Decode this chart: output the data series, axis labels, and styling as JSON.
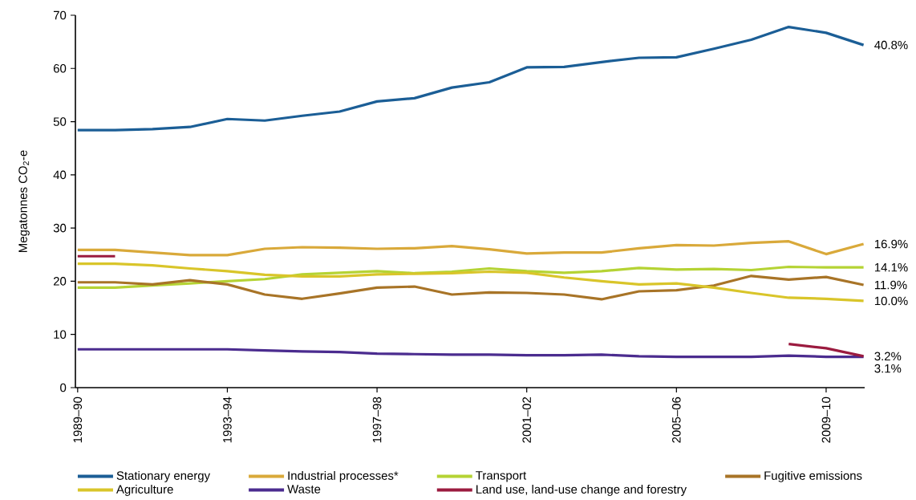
{
  "chart_data": {
    "type": "line",
    "ylabel": "Megatonnes CO$_{2}$-e",
    "categories": [
      "1989–90",
      null,
      null,
      null,
      "1993–94",
      null,
      null,
      null,
      "1997–98",
      null,
      null,
      null,
      "2001–02",
      null,
      null,
      null,
      "2005–06",
      null,
      null,
      null,
      "2009–10",
      null
    ],
    "annotations": [
      "40.8%",
      "16.9%",
      "14.1%",
      "11.9%",
      "10.0%",
      "3.1%",
      "3.2%"
    ],
    "ylim": [
      0,
      70
    ],
    "yticks": [
      0,
      10,
      20,
      30,
      40,
      50,
      60,
      70
    ],
    "grid": false,
    "legend": "bottom",
    "marker": "none",
    "line_style": "solid",
    "series": [
      {
        "name": "Stationary energy",
        "color": "#1b5e96",
        "values": [
          48.4,
          48.4,
          48.6,
          49.0,
          50.5,
          50.2,
          51.1,
          51.9,
          53.8,
          54.4,
          56.4,
          57.4,
          60.2,
          60.3,
          61.2,
          62.0,
          62.1,
          63.7,
          65.4,
          67.8,
          66.7,
          64.4
        ]
      },
      {
        "name": "Industrial processes*",
        "color": "#d9a93a",
        "values": [
          25.9,
          25.9,
          25.4,
          24.9,
          24.9,
          26.1,
          26.4,
          26.3,
          26.1,
          26.2,
          26.6,
          26.0,
          25.2,
          25.4,
          25.4,
          26.2,
          26.8,
          26.7,
          27.2,
          27.5,
          25.1,
          27.0
        ]
      },
      {
        "name": "Transport",
        "color": "#b5d334",
        "values": [
          18.8,
          18.8,
          19.2,
          19.6,
          20.0,
          20.4,
          21.3,
          21.6,
          21.9,
          21.5,
          21.8,
          22.4,
          21.9,
          21.6,
          21.9,
          22.5,
          22.2,
          22.3,
          22.1,
          22.7,
          22.6,
          22.6
        ]
      },
      {
        "name": "Fugitive emissions",
        "color": "#a87427",
        "values": [
          19.8,
          19.8,
          19.4,
          20.2,
          19.4,
          17.5,
          16.7,
          17.7,
          18.8,
          19.0,
          17.5,
          17.9,
          17.8,
          17.5,
          16.6,
          18.1,
          18.3,
          19.2,
          21.0,
          20.3,
          20.8,
          19.3
        ]
      },
      {
        "name": "Agriculture",
        "color": "#d9c52a",
        "values": [
          23.3,
          23.3,
          23.0,
          22.4,
          21.9,
          21.2,
          20.9,
          20.9,
          21.3,
          21.4,
          21.5,
          21.8,
          21.6,
          20.7,
          20.0,
          19.4,
          19.6,
          18.8,
          17.8,
          16.9,
          16.7,
          16.3
        ]
      },
      {
        "name": "Waste",
        "color": "#4b2c8f",
        "values": [
          7.2,
          7.2,
          7.2,
          7.2,
          7.2,
          7.0,
          6.8,
          6.7,
          6.4,
          6.3,
          6.2,
          6.2,
          6.1,
          6.1,
          6.2,
          5.9,
          5.8,
          5.8,
          5.8,
          6.0,
          5.8,
          5.8
        ]
      },
      {
        "name": "Land use, land-use change and forestry",
        "color": "#9b1b3f",
        "values": [
          24.7,
          24.7,
          null,
          null,
          null,
          null,
          null,
          null,
          null,
          null,
          null,
          null,
          null,
          null,
          null,
          null,
          null,
          null,
          null,
          8.2,
          7.4,
          5.9
        ]
      }
    ]
  }
}
